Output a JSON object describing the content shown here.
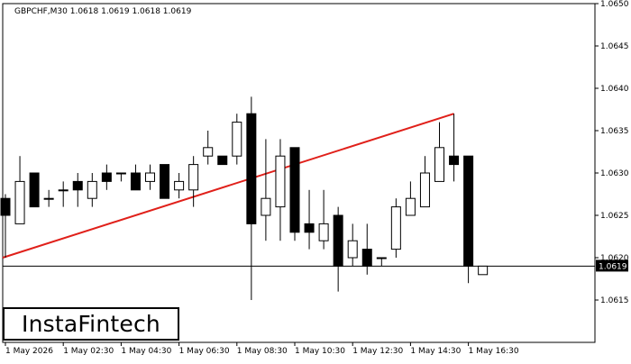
{
  "chart_data": {
    "type": "candlestick",
    "title": "GBPCHF,M30  1.0618 1.0619 1.0618 1.0619",
    "symbol": "GBPCHF",
    "timeframe": "M30",
    "ylim": [
      1.061,
      1.065
    ],
    "y_ticks": [
      "1.0615",
      "1.0620",
      "1.0625",
      "1.0630",
      "1.0635",
      "1.0640",
      "1.0645",
      "1.0650"
    ],
    "x_ticks": [
      "1 May 2026",
      "1 May 02:30",
      "1 May 04:30",
      "1 May 06:30",
      "1 May 08:30",
      "1 May 10:30",
      "1 May 12:30",
      "1 May 14:30",
      "1 May 16:30"
    ],
    "current_price": "1.0619",
    "grid": false,
    "candles": [
      {
        "o": 1.0627,
        "h": 1.06275,
        "l": 1.062,
        "c": 1.0625
      },
      {
        "o": 1.0624,
        "h": 1.0632,
        "l": 1.0624,
        "c": 1.0629
      },
      {
        "o": 1.063,
        "h": 1.063,
        "l": 1.0626,
        "c": 1.0626
      },
      {
        "o": 1.0627,
        "h": 1.0628,
        "l": 1.0626,
        "c": 1.0627
      },
      {
        "o": 1.0628,
        "h": 1.0629,
        "l": 1.0626,
        "c": 1.0628
      },
      {
        "o": 1.0629,
        "h": 1.063,
        "l": 1.0626,
        "c": 1.0628
      },
      {
        "o": 1.0627,
        "h": 1.063,
        "l": 1.0626,
        "c": 1.0629
      },
      {
        "o": 1.063,
        "h": 1.0631,
        "l": 1.0628,
        "c": 1.0629
      },
      {
        "o": 1.063,
        "h": 1.063,
        "l": 1.0629,
        "c": 1.063
      },
      {
        "o": 1.063,
        "h": 1.0631,
        "l": 1.0628,
        "c": 1.0628
      },
      {
        "o": 1.0629,
        "h": 1.0631,
        "l": 1.0628,
        "c": 1.063
      },
      {
        "o": 1.0631,
        "h": 1.0631,
        "l": 1.0627,
        "c": 1.0627
      },
      {
        "o": 1.0628,
        "h": 1.063,
        "l": 1.0627,
        "c": 1.0629
      },
      {
        "o": 1.0628,
        "h": 1.0632,
        "l": 1.0626,
        "c": 1.0631
      },
      {
        "o": 1.0632,
        "h": 1.0635,
        "l": 1.0631,
        "c": 1.0633
      },
      {
        "o": 1.0632,
        "h": 1.0632,
        "l": 1.0631,
        "c": 1.0631
      },
      {
        "o": 1.0632,
        "h": 1.0637,
        "l": 1.0631,
        "c": 1.0636
      },
      {
        "o": 1.0637,
        "h": 1.0639,
        "l": 1.0615,
        "c": 1.0624
      },
      {
        "o": 1.0625,
        "h": 1.0634,
        "l": 1.0622,
        "c": 1.0627
      },
      {
        "o": 1.0626,
        "h": 1.0634,
        "l": 1.0622,
        "c": 1.0632
      },
      {
        "o": 1.0633,
        "h": 1.0633,
        "l": 1.0622,
        "c": 1.0623
      },
      {
        "o": 1.0624,
        "h": 1.0628,
        "l": 1.0621,
        "c": 1.0623
      },
      {
        "o": 1.0622,
        "h": 1.0628,
        "l": 1.0621,
        "c": 1.0624
      },
      {
        "o": 1.0625,
        "h": 1.0626,
        "l": 1.0616,
        "c": 1.0619
      },
      {
        "o": 1.062,
        "h": 1.0624,
        "l": 1.0619,
        "c": 1.0622
      },
      {
        "o": 1.0621,
        "h": 1.0624,
        "l": 1.0618,
        "c": 1.0619
      },
      {
        "o": 1.062,
        "h": 1.062,
        "l": 1.0619,
        "c": 1.062
      },
      {
        "o": 1.0621,
        "h": 1.0627,
        "l": 1.062,
        "c": 1.0626
      },
      {
        "o": 1.0625,
        "h": 1.0629,
        "l": 1.0625,
        "c": 1.0627
      },
      {
        "o": 1.0626,
        "h": 1.0632,
        "l": 1.0626,
        "c": 1.063
      },
      {
        "o": 1.0629,
        "h": 1.0636,
        "l": 1.0629,
        "c": 1.0633
      },
      {
        "o": 1.0632,
        "h": 1.0637,
        "l": 1.0629,
        "c": 1.0631
      },
      {
        "o": 1.0632,
        "h": 1.0632,
        "l": 1.0617,
        "c": 1.0619
      },
      {
        "o": 1.0618,
        "h": 1.0619,
        "l": 1.0618,
        "c": 1.0619
      }
    ],
    "trend_line": {
      "start_index": 0,
      "start_price": 1.062,
      "end_index": 31,
      "end_price": 1.0637
    },
    "price_line": 1.0619,
    "colors": {
      "bull_body": "#ffffff",
      "bear_body": "#000000",
      "candle_outline": "#000000",
      "trend_line": "#e0201a",
      "axis": "#000000",
      "price_label_bg": "#000000",
      "price_label_text": "#ffffff"
    }
  },
  "logo": {
    "text": "InstaFintech"
  }
}
